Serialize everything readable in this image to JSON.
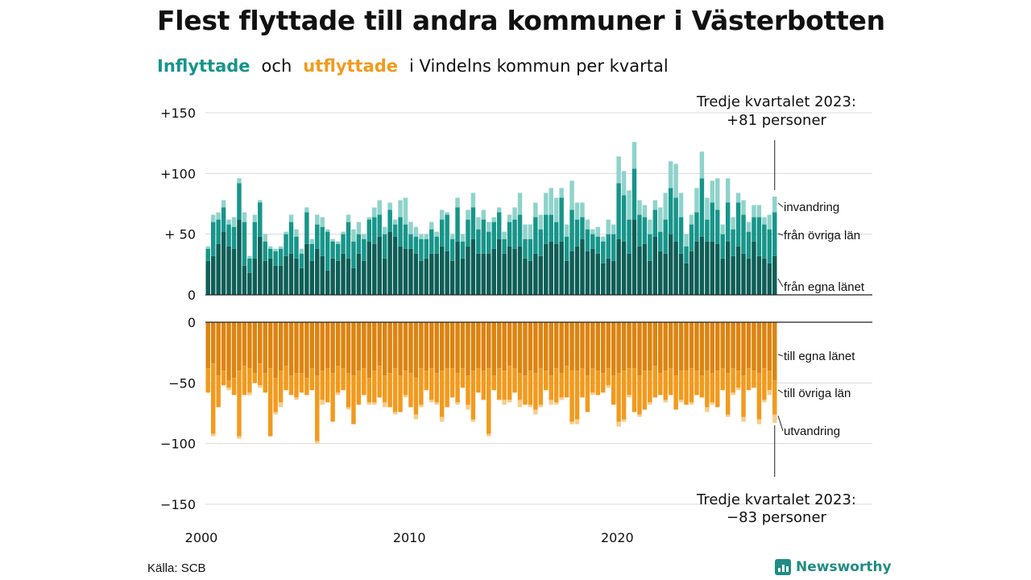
{
  "title": "Flest flyttade till andra kommuner i Västerbotten",
  "subtitle": {
    "inflyttade": "Inflyttade",
    "och": "och",
    "utflyttade": "utflyttade",
    "rest": "i Vindelns  kommun  per  kvartal"
  },
  "annotations": {
    "in_line1": "Tredje kvartalet 2023:",
    "in_line2": "+81 personer",
    "out_line1": "Tredje kvartalet 2023:",
    "out_line2": "−83 personer"
  },
  "segment_labels": {
    "invandring": "invandring",
    "fran_ovriga_lan": "från övriga län",
    "fran_egna_lanet": "från egna länet",
    "till_egna_lanet": "till egna länet",
    "till_ovriga_lan": "till övriga län",
    "utvandring": "utvandring"
  },
  "source": "Källa: SCB",
  "logo": {
    "name": "Newsworthy",
    "icon": "bar-chart-icon"
  },
  "colors": {
    "in_egna": "#0d5e56",
    "in_ovriga": "#17958a",
    "in_invandring": "#8fd3cb",
    "out_egna": "#dd8410",
    "out_ovriga": "#f29a1d",
    "out_utvandring": "#f8cd8c"
  },
  "chart_data": {
    "type": "bar",
    "stacked": true,
    "x_start": "2000 Q1",
    "x_ticks": [
      "2000",
      "2010",
      "2020"
    ],
    "in_axis": {
      "ticks": [
        "+150",
        "+100",
        "+ 50",
        "0"
      ],
      "ylim": [
        0,
        150
      ]
    },
    "out_axis": {
      "ticks": [
        "0",
        "−50",
        "−100",
        "−150"
      ],
      "ylim": [
        -150,
        0
      ]
    },
    "inflyttade": {
      "fran_egna_lanet": [
        28,
        32,
        42,
        52,
        40,
        38,
        62,
        24,
        18,
        30,
        48,
        28,
        30,
        24,
        24,
        32,
        34,
        30,
        22,
        42,
        28,
        38,
        32,
        20,
        30,
        28,
        34,
        30,
        22,
        34,
        28,
        44,
        42,
        48,
        30,
        52,
        48,
        40,
        38,
        38,
        34,
        28,
        30,
        34,
        34,
        40,
        36,
        28,
        44,
        30,
        40,
        46,
        34,
        34,
        34,
        38,
        46,
        34,
        40,
        38,
        40,
        30,
        28,
        34,
        32,
        42,
        44,
        42,
        44,
        28,
        36,
        40,
        46,
        36,
        38,
        34,
        26,
        30,
        28,
        46,
        44,
        34,
        62,
        40,
        42,
        28,
        48,
        36,
        34,
        50,
        44,
        34,
        26,
        36,
        44,
        48,
        44,
        44,
        42,
        30,
        44,
        32,
        40,
        34,
        30,
        44,
        32,
        30,
        26,
        32
      ],
      "fran_ovriga_lan": [
        10,
        28,
        20,
        20,
        18,
        18,
        30,
        36,
        12,
        30,
        28,
        16,
        8,
        12,
        14,
        18,
        26,
        18,
        12,
        26,
        14,
        20,
        24,
        32,
        14,
        14,
        16,
        30,
        22,
        16,
        18,
        18,
        22,
        18,
        20,
        18,
        10,
        24,
        20,
        12,
        14,
        18,
        16,
        20,
        14,
        22,
        30,
        18,
        28,
        14,
        22,
        26,
        20,
        28,
        18,
        22,
        22,
        12,
        20,
        24,
        26,
        16,
        18,
        30,
        22,
        24,
        22,
        18,
        36,
        20,
        34,
        22,
        18,
        18,
        12,
        14,
        18,
        20,
        22,
        46,
        38,
        28,
        42,
        26,
        22,
        22,
        22,
        16,
        28,
        38,
        36,
        30,
        14,
        22,
        24,
        48,
        18,
        32,
        28,
        20,
        32,
        22,
        36,
        32,
        22,
        20,
        32,
        28,
        28,
        36
      ],
      "invandring": [
        2,
        6,
        6,
        6,
        4,
        8,
        4,
        8,
        2,
        6,
        2,
        6,
        2,
        2,
        2,
        2,
        6,
        6,
        4,
        4,
        4,
        8,
        8,
        2,
        2,
        2,
        2,
        6,
        10,
        10,
        4,
        2,
        8,
        12,
        6,
        6,
        4,
        14,
        22,
        10,
        8,
        4,
        4,
        6,
        4,
        8,
        2,
        4,
        8,
        6,
        8,
        12,
        10,
        8,
        8,
        4,
        4,
        6,
        6,
        10,
        18,
        12,
        12,
        12,
        12,
        18,
        22,
        20,
        8,
        10,
        24,
        14,
        12,
        8,
        4,
        8,
        4,
        12,
        8,
        22,
        20,
        24,
        22,
        12,
        10,
        12,
        8,
        20,
        22,
        22,
        28,
        20,
        10,
        8,
        20,
        22,
        18,
        18,
        26,
        8,
        20,
        10,
        8,
        12,
        8,
        10,
        10,
        6,
        12,
        13
      ]
    },
    "utflyttade": {
      "till_egna_lanet": [
        -38,
        -34,
        -44,
        -40,
        -48,
        -46,
        -40,
        -36,
        -38,
        -42,
        -34,
        -42,
        -38,
        -46,
        -40,
        -36,
        -44,
        -42,
        -42,
        -46,
        -38,
        -44,
        -40,
        -38,
        -42,
        -36,
        -38,
        -42,
        -44,
        -40,
        -38,
        -46,
        -40,
        -36,
        -44,
        -42,
        -38,
        -44,
        -40,
        -42,
        -46,
        -38,
        -40,
        -38,
        -42,
        -40,
        -38,
        -38,
        -42,
        -38,
        -44,
        -40,
        -38,
        -40,
        -38,
        -44,
        -38,
        -40,
        -36,
        -38,
        -42,
        -44,
        -40,
        -42,
        -38,
        -40,
        -44,
        -38,
        -42,
        -36,
        -40,
        -40,
        -38,
        -44,
        -38,
        -40,
        -42,
        -38,
        -44,
        -42,
        -40,
        -38,
        -38,
        -44,
        -40,
        -40,
        -36,
        -42,
        -40,
        -38,
        -44,
        -40,
        -40,
        -38,
        -40,
        -44,
        -40,
        -42,
        -40,
        -38,
        -42,
        -38,
        -40,
        -44,
        -38,
        -40,
        -42,
        -38,
        -40,
        -48
      ],
      "till_ovriga_lan": [
        -20,
        -58,
        -26,
        -12,
        -6,
        -14,
        -54,
        -24,
        -20,
        -8,
        -18,
        -16,
        -56,
        -28,
        -26,
        -20,
        -16,
        -20,
        -16,
        -14,
        -18,
        -54,
        -24,
        -28,
        -40,
        -22,
        -18,
        -28,
        -40,
        -28,
        -22,
        -20,
        -26,
        -26,
        -22,
        -28,
        -36,
        -30,
        -20,
        -28,
        -30,
        -30,
        -16,
        -26,
        -24,
        -38,
        -32,
        -24,
        -24,
        -16,
        -24,
        -40,
        -20,
        -24,
        -54,
        -12,
        -26,
        -24,
        -28,
        -20,
        -22,
        -24,
        -28,
        -30,
        -30,
        -16,
        -20,
        -28,
        -20,
        -26,
        -42,
        -40,
        -24,
        -30,
        -20,
        -20,
        -16,
        -14,
        -24,
        -40,
        -40,
        -22,
        -36,
        -32,
        -32,
        -26,
        -26,
        -18,
        -24,
        -22,
        -28,
        -24,
        -28,
        -28,
        -20,
        -18,
        -30,
        -24,
        -30,
        -18,
        -34,
        -20,
        -14,
        -34,
        -18,
        -14,
        -38,
        -26,
        -16,
        -28
      ],
      "utvandring": [
        0,
        -2,
        0,
        0,
        -2,
        0,
        -2,
        0,
        -2,
        0,
        -2,
        0,
        0,
        -2,
        -4,
        0,
        0,
        -2,
        0,
        0,
        0,
        -2,
        -4,
        0,
        0,
        -2,
        0,
        -2,
        0,
        0,
        0,
        -2,
        -2,
        0,
        -4,
        0,
        -2,
        0,
        -2,
        0,
        -4,
        -2,
        0,
        -2,
        -2,
        -4,
        0,
        0,
        -2,
        0,
        -4,
        -2,
        0,
        0,
        -2,
        0,
        0,
        -4,
        -2,
        0,
        -6,
        0,
        -2,
        -4,
        -2,
        0,
        -4,
        -2,
        -2,
        0,
        -2,
        -4,
        0,
        0,
        -2,
        0,
        0,
        -2,
        0,
        -4,
        -2,
        -2,
        0,
        -2,
        0,
        -2,
        0,
        0,
        -2,
        0,
        0,
        -2,
        0,
        -2,
        0,
        0,
        -4,
        -2,
        0,
        0,
        -2,
        -2,
        -2,
        -4,
        0,
        0,
        -4,
        -2,
        -4,
        -7
      ]
    }
  }
}
